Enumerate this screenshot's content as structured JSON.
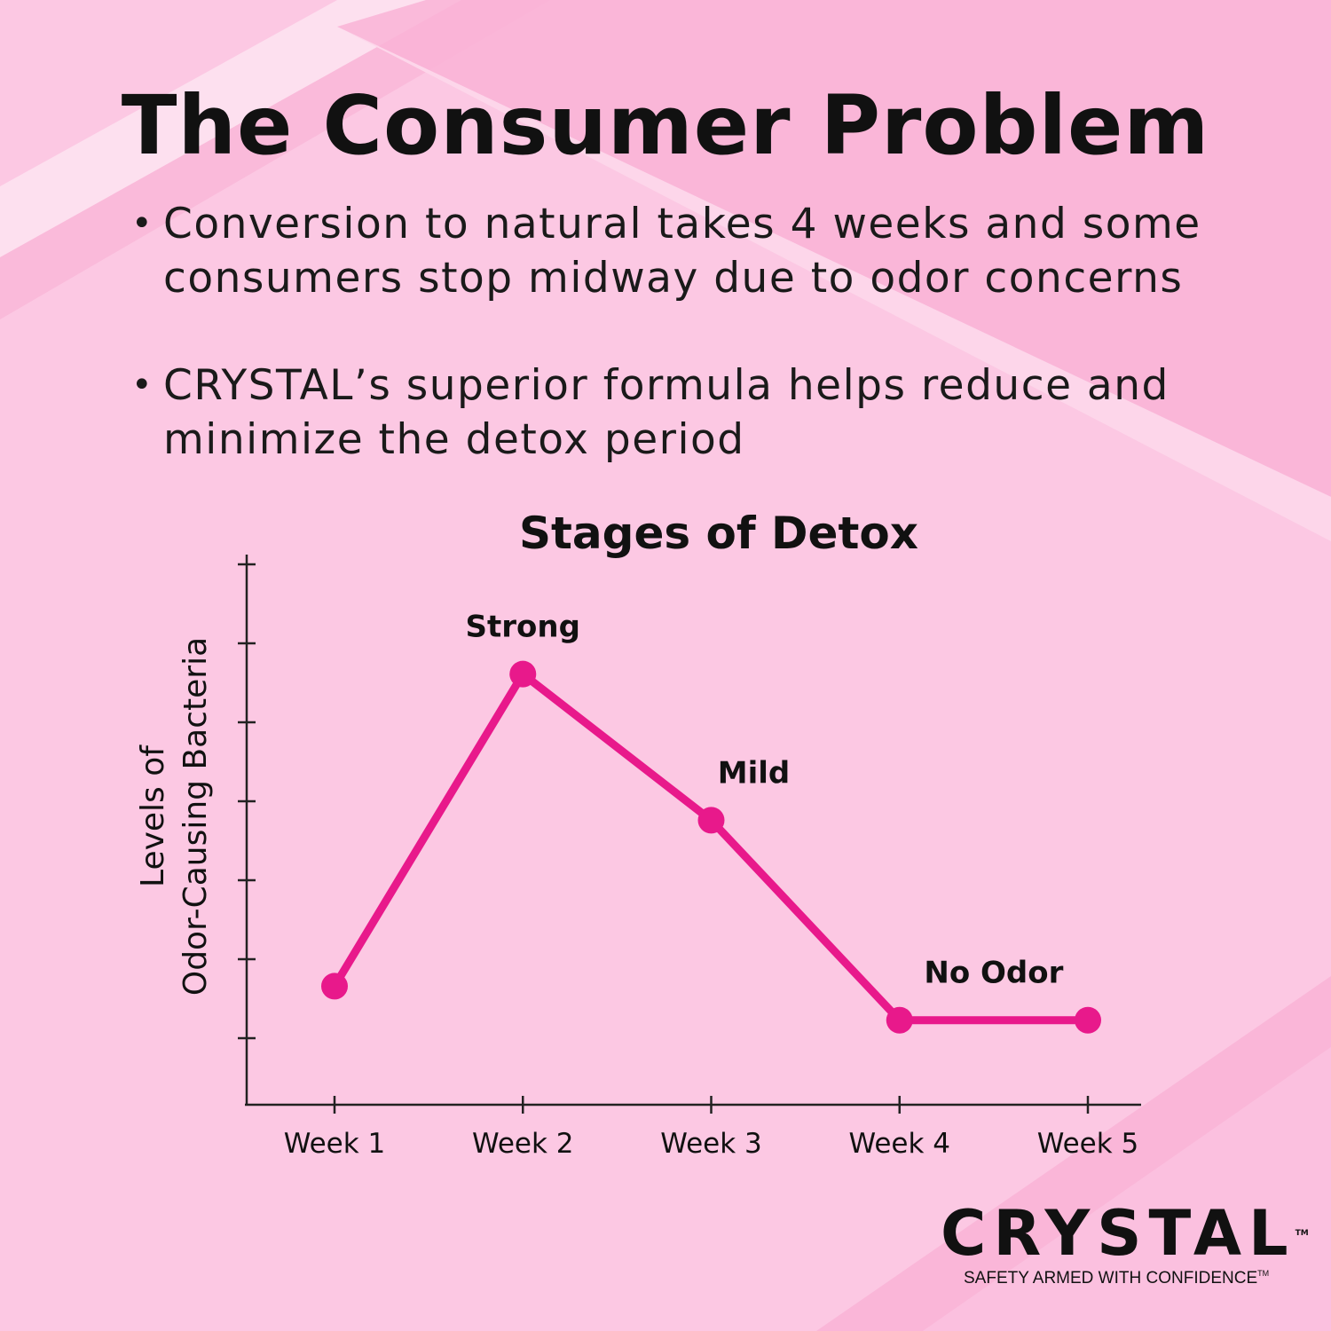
{
  "header": {
    "title": "The Consumer Problem"
  },
  "bullets": [
    "Conversion to natural takes 4 weeks and some consumers stop midway due to odor concerns",
    "CRYSTAL’s superior formula helps reduce and minimize the detox period"
  ],
  "chart_data": {
    "type": "line",
    "title": "Stages of Detox",
    "ylabel_line1": "Levels of",
    "ylabel_line2": "Odor-Causing Bacteria",
    "xlabel": "",
    "categories": [
      "Week 1",
      "Week 2",
      "Week 3",
      "Week 4",
      "Week 5"
    ],
    "series": [
      {
        "values": [
          0.65,
          4.6,
          2.75,
          0.22,
          0.22
        ]
      }
    ],
    "point_labels": [
      "",
      "Strong",
      "Mild",
      "No Odor",
      ""
    ],
    "ylim": [
      -0.85,
      6
    ],
    "y_ticks": 7,
    "grid": false,
    "legend": "none"
  },
  "logo": {
    "brand": "CRYSTAL",
    "tagline": "SAFETY ARMED WITH CONFIDENCE",
    "trademark": "TM"
  },
  "colors": {
    "background": "#fcc8e3",
    "stripe": "#f9b3d6",
    "stripe_light": "#fdd6ea",
    "accent_line": "#e8198b",
    "text": "#111111"
  }
}
